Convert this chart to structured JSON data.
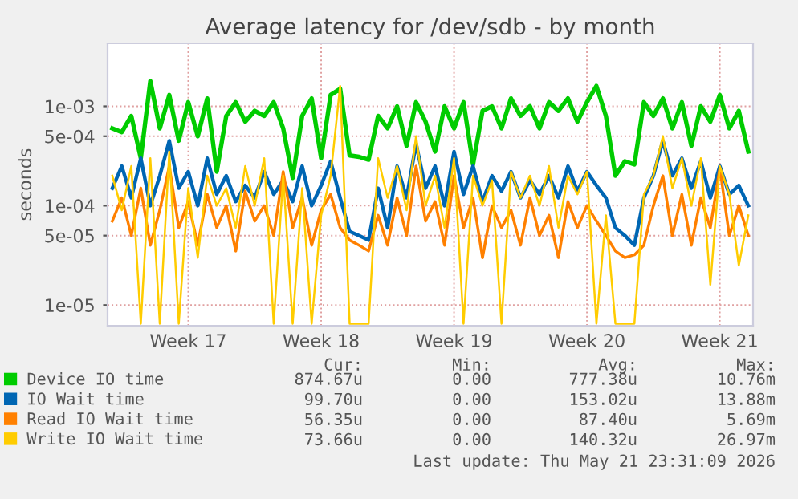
{
  "chart_data": {
    "type": "line",
    "title": "Average latency for /dev/sdb - by month",
    "ylabel": "seconds",
    "log": "y",
    "grid": true,
    "legend": "bottom",
    "marker": "none",
    "line_style": "solid",
    "ylim": [
      6.2e-06,
      0.0043
    ],
    "yticks": [
      {
        "value": 1e-05,
        "label": "1e-05"
      },
      {
        "value": 5e-05,
        "label": "5e-05"
      },
      {
        "value": 0.0001,
        "label": "1e-04"
      },
      {
        "value": 0.0005,
        "label": "5e-04"
      },
      {
        "value": 0.001,
        "label": "1e-03"
      }
    ],
    "categories": [
      null,
      null,
      null,
      null,
      null,
      null,
      null,
      null,
      "Week 17",
      null,
      null,
      null,
      null,
      null,
      null,
      null,
      null,
      null,
      null,
      null,
      null,
      null,
      "Week 18",
      null,
      null,
      null,
      null,
      null,
      null,
      null,
      null,
      null,
      null,
      null,
      null,
      null,
      "Week 19",
      null,
      null,
      null,
      null,
      null,
      null,
      null,
      null,
      null,
      null,
      null,
      null,
      null,
      "Week 20",
      null,
      null,
      null,
      null,
      null,
      null,
      null,
      null,
      null,
      null,
      null,
      null,
      null,
      "Week 21",
      null,
      null,
      null
    ],
    "series": [
      {
        "name": "Device IO time",
        "color": "#00cc00",
        "values": [
          0.0006,
          0.00055,
          0.0008,
          0.0003,
          0.0018,
          0.0006,
          0.0013,
          0.00045,
          0.0011,
          0.0005,
          0.0012,
          0.00022,
          0.0008,
          0.0011,
          0.0007,
          0.0009,
          0.0008,
          0.0011,
          0.0006,
          0.00019,
          0.0008,
          0.0012,
          0.0003,
          0.0013,
          0.0015,
          0.00032,
          0.00031,
          0.00029,
          0.0008,
          0.0006,
          0.001,
          0.0004,
          0.0011,
          0.0007,
          0.00035,
          0.001,
          0.0006,
          0.0011,
          0.00026,
          0.0009,
          0.001,
          0.0006,
          0.0012,
          0.0008,
          0.001,
          0.0006,
          0.0011,
          0.0009,
          0.0012,
          0.0007,
          0.0011,
          0.0016,
          0.0008,
          0.0002,
          0.00028,
          0.00026,
          0.0011,
          0.0008,
          0.0012,
          0.0006,
          0.0011,
          0.0004,
          0.001,
          0.0007,
          0.0013,
          0.0006,
          0.0009,
          0.00035
        ]
      },
      {
        "name": "IO Wait time",
        "color": "#0066b3",
        "values": [
          0.00015,
          0.00025,
          0.00012,
          0.0003,
          0.0001,
          0.0002,
          0.00045,
          0.00015,
          0.00022,
          0.0001,
          0.0003,
          0.00013,
          0.0002,
          0.00011,
          0.00016,
          0.00012,
          0.00022,
          0.00013,
          0.00018,
          0.00011,
          0.00025,
          0.0001,
          0.00016,
          0.00028,
          0.00012,
          5.5e-05,
          5e-05,
          4.5e-05,
          0.00015,
          6e-05,
          0.00025,
          0.00012,
          0.00042,
          0.00015,
          0.00025,
          0.0001,
          0.00035,
          0.00013,
          0.00025,
          0.00011,
          0.0002,
          0.00014,
          0.00022,
          0.00012,
          0.00018,
          0.00013,
          0.0002,
          0.00012,
          0.00025,
          0.00014,
          0.00022,
          0.00016,
          0.00012,
          6e-05,
          5e-05,
          4e-05,
          0.00012,
          0.0002,
          0.00045,
          0.0002,
          0.0003,
          0.00015,
          0.00028,
          0.00012,
          0.00025,
          0.00013,
          0.00016,
          0.0001
        ]
      },
      {
        "name": "Read IO Wait time",
        "color": "#ff8000",
        "values": [
          7e-05,
          0.00012,
          5e-05,
          0.00015,
          4e-05,
          9e-05,
          0.00025,
          6e-05,
          0.00011,
          4e-05,
          0.00013,
          6e-05,
          0.0001,
          3.5e-05,
          0.00014,
          7e-05,
          0.0001,
          5e-05,
          0.00022,
          6e-05,
          0.00012,
          4e-05,
          9e-05,
          0.00013,
          6e-05,
          4.5e-05,
          4e-05,
          3.5e-05,
          8e-05,
          4e-05,
          0.00012,
          5e-05,
          0.00025,
          7e-05,
          0.00011,
          4e-05,
          0.0002,
          6e-05,
          0.00012,
          3e-05,
          0.0001,
          6e-05,
          9e-05,
          4e-05,
          0.00012,
          5e-05,
          8e-05,
          3e-05,
          0.00011,
          6e-05,
          0.0001,
          7e-05,
          5e-05,
          3.5e-05,
          3e-05,
          3.2e-05,
          4e-05,
          0.0001,
          0.0002,
          5e-05,
          0.00013,
          4e-05,
          0.00012,
          6e-05,
          0.00024,
          5e-05,
          0.0001,
          5e-05
        ]
      },
      {
        "name": "Write IO Wait time",
        "color": "#ffcc00",
        "values": [
          0.0002,
          9e-05,
          0.00025,
          6.5e-06,
          0.0003,
          6.5e-06,
          0.00035,
          6.5e-06,
          0.00015,
          3e-05,
          0.0002,
          0.0001,
          0.00015,
          6e-05,
          0.00025,
          0.0001,
          0.0003,
          6.5e-06,
          0.0002,
          6.5e-06,
          0.00015,
          6.5e-06,
          8e-05,
          0.0002,
          0.0016,
          6.5e-06,
          6.5e-06,
          6.5e-06,
          0.0003,
          0.00012,
          0.00025,
          9e-05,
          0.0005,
          0.0001,
          0.0002,
          6e-05,
          0.0003,
          6.5e-06,
          0.0002,
          0.0001,
          0.00018,
          6.5e-06,
          0.00022,
          0.00012,
          0.0002,
          0.0001,
          0.00025,
          6e-05,
          0.0002,
          0.00013,
          0.00022,
          6.5e-06,
          8e-05,
          6.5e-06,
          6.5e-06,
          6.5e-06,
          0.00013,
          0.0002,
          0.0005,
          0.00015,
          0.0003,
          0.0001,
          0.0003,
          1.6e-05,
          0.00025,
          0.00013,
          2.5e-05,
          8e-05
        ]
      }
    ],
    "annotations": [
      "Cur:",
      "Min:",
      "Avg:",
      "Max:",
      "874.67u",
      "0.00",
      "777.38u",
      "10.76m",
      "99.70u",
      "0.00",
      "153.02u",
      "13.88m",
      "56.35u",
      "0.00",
      "87.40u",
      "5.69m",
      "73.66u",
      "0.00",
      "140.32u",
      "26.97m",
      "Last update: Thu May 21 23:31:09 2026"
    ]
  }
}
